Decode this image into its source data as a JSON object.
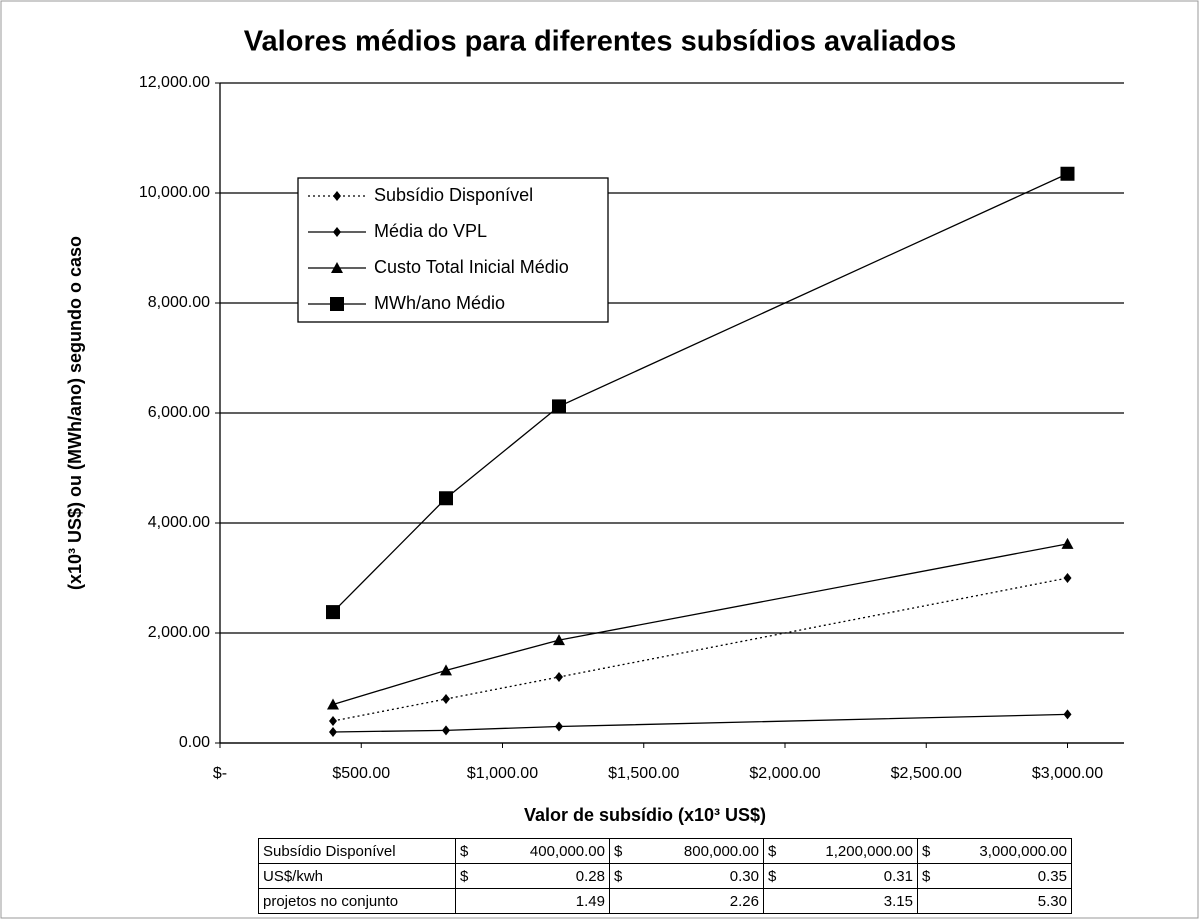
{
  "chart_data": {
    "type": "line",
    "title": "Valores médios para diferentes subsídios avaliados",
    "y_label": "(x10³ US$) ou (MWh/ano) segundo o caso",
    "x_label": "Valor de subsídio (x10³ US$)",
    "x": [
      400,
      800,
      1200,
      3000
    ],
    "xlim": [
      0,
      3200
    ],
    "xticks": [
      {
        "value": 0,
        "label": "$-"
      },
      {
        "value": 500,
        "label": "$500.00"
      },
      {
        "value": 1000,
        "label": "$1,000.00"
      },
      {
        "value": 1500,
        "label": "$1,500.00"
      },
      {
        "value": 2000,
        "label": "$2,000.00"
      },
      {
        "value": 2500,
        "label": "$2,500.00"
      },
      {
        "value": 3000,
        "label": "$3,000.00"
      }
    ],
    "ylim": [
      0,
      12000
    ],
    "yticks": [
      {
        "value": 0,
        "label": "0.00"
      },
      {
        "value": 2000,
        "label": "2,000.00"
      },
      {
        "value": 4000,
        "label": "4,000.00"
      },
      {
        "value": 6000,
        "label": "6,000.00"
      },
      {
        "value": 8000,
        "label": "8,000.00"
      },
      {
        "value": 10000,
        "label": "10,000.00"
      },
      {
        "value": 12000,
        "label": "12,000.00"
      }
    ],
    "grid": true,
    "series": [
      {
        "name": "Subsídio Disponível",
        "color": "#000000",
        "marker": "diamond",
        "dash": "dotted",
        "values": [
          400,
          800,
          1200,
          3000
        ]
      },
      {
        "name": "Média do VPL",
        "color": "#000000",
        "marker": "diamond",
        "dash": "solid",
        "values": [
          200,
          230,
          300,
          520
        ]
      },
      {
        "name": "Custo Total Inicial Médio",
        "color": "#000000",
        "marker": "triangle",
        "dash": "solid",
        "values": [
          700,
          1320,
          1870,
          3620
        ]
      },
      {
        "name": "MWh/ano Médio",
        "color": "#000000",
        "marker": "square",
        "dash": "solid",
        "values": [
          2380,
          4450,
          6120,
          10350
        ]
      }
    ]
  },
  "table": {
    "rows": [
      {
        "label": "Subsídio Disponível",
        "cells": [
          [
            "$",
            "400,000.00"
          ],
          [
            "$",
            "800,000.00"
          ],
          [
            "$",
            "1,200,000.00"
          ],
          [
            "$",
            "3,000,000.00"
          ]
        ]
      },
      {
        "label": "US$/kwh",
        "cells": [
          [
            "$",
            "0.28"
          ],
          [
            "$",
            "0.30"
          ],
          [
            "$",
            "0.31"
          ],
          [
            "$",
            "0.35"
          ]
        ]
      },
      {
        "label": "projetos no conjunto",
        "cells": [
          [
            "1.49"
          ],
          [
            "2.26"
          ],
          [
            "3.15"
          ],
          [
            "5.30"
          ]
        ]
      }
    ]
  }
}
